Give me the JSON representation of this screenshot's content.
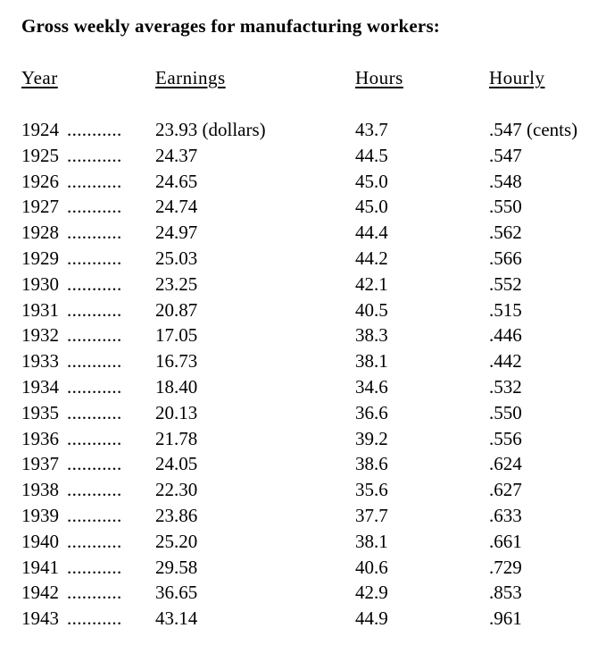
{
  "title": "Gross weekly averages for manufacturing workers:",
  "headers": {
    "year": "Year",
    "earnings": "Earnings",
    "hours": "Hours",
    "hourly": "Hourly"
  },
  "leader": "...........",
  "rows": [
    {
      "year": "1924",
      "earnings": "23.93 (dollars)",
      "hours": "43.7",
      "hourly": ".547 (cents)"
    },
    {
      "year": "1925",
      "earnings": "24.37",
      "hours": "44.5",
      "hourly": ".547"
    },
    {
      "year": "1926",
      "earnings": "24.65",
      "hours": "45.0",
      "hourly": ".548"
    },
    {
      "year": "1927",
      "earnings": "24.74",
      "hours": "45.0",
      "hourly": ".550"
    },
    {
      "year": "1928",
      "earnings": "24.97",
      "hours": "44.4",
      "hourly": ".562"
    },
    {
      "year": "1929",
      "earnings": "25.03",
      "hours": "44.2",
      "hourly": ".566"
    },
    {
      "year": "1930",
      "earnings": "23.25",
      "hours": "42.1",
      "hourly": ".552"
    },
    {
      "year": "1931",
      "earnings": "20.87",
      "hours": "40.5",
      "hourly": ".515"
    },
    {
      "year": "1932",
      "earnings": "17.05",
      "hours": "38.3",
      "hourly": ".446"
    },
    {
      "year": "1933",
      "earnings": "16.73",
      "hours": "38.1",
      "hourly": ".442"
    },
    {
      "year": "1934",
      "earnings": "18.40",
      "hours": "34.6",
      "hourly": ".532"
    },
    {
      "year": "1935",
      "earnings": "20.13",
      "hours": "36.6",
      "hourly": ".550"
    },
    {
      "year": "1936",
      "earnings": "21.78",
      "hours": "39.2",
      "hourly": ".556"
    },
    {
      "year": "1937",
      "earnings": "24.05",
      "hours": "38.6",
      "hourly": ".624"
    },
    {
      "year": "1938",
      "earnings": "22.30",
      "hours": "35.6",
      "hourly": ".627"
    },
    {
      "year": "1939",
      "earnings": "23.86",
      "hours": "37.7",
      "hourly": ".633"
    },
    {
      "year": "1940",
      "earnings": "25.20",
      "hours": "38.1",
      "hourly": ".661"
    },
    {
      "year": "1941",
      "earnings": "29.58",
      "hours": "40.6",
      "hourly": ".729"
    },
    {
      "year": "1942",
      "earnings": "36.65",
      "hours": "42.9",
      "hourly": ".853"
    },
    {
      "year": "1943",
      "earnings": "43.14",
      "hours": "44.9",
      "hourly": ".961"
    }
  ]
}
